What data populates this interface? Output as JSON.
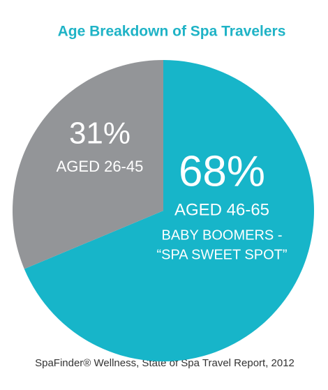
{
  "chart_data": {
    "type": "pie",
    "title": "Age Breakdown of Spa Travelers",
    "categories": [
      "AGED 46-65",
      "AGED 26-45"
    ],
    "values": [
      68,
      31
    ],
    "value_labels": [
      "68%",
      "31%"
    ],
    "colors": [
      "#17b5c9",
      "#939598"
    ],
    "annotation": [
      "BABY BOOMERS -",
      "“SPA SWEET SPOT”"
    ],
    "source": "SpaFinder® Wellness, State of Spa Travel Report, 2012"
  }
}
